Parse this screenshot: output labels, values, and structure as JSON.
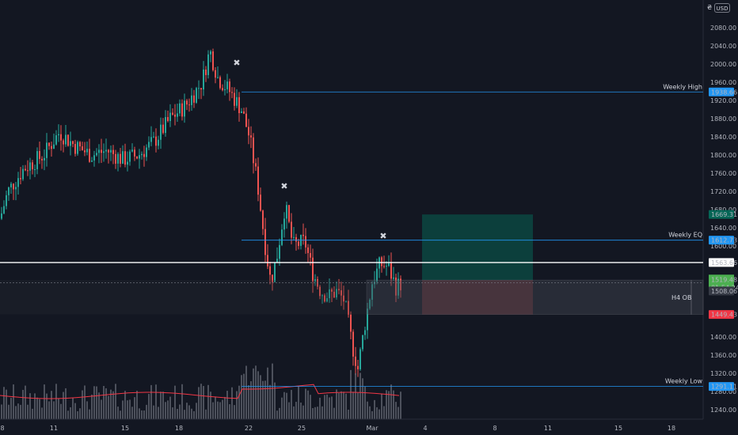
{
  "currency_symbol": "₴",
  "currency_button": "USD",
  "price_axis": {
    "ticks": [
      "2080.00",
      "2040.00",
      "2000.00",
      "1960.00",
      "1920.00",
      "1880.00",
      "1840.00",
      "1800.00",
      "1760.00",
      "1720.00",
      "1680.00",
      "1640.00",
      "1600.00",
      "1400.00",
      "1360.00",
      "1320.00",
      "1280.00",
      "1240.00"
    ],
    "tick_values": [
      2080,
      2040,
      2000,
      1960,
      1920,
      1880,
      1840,
      1800,
      1760,
      1720,
      1680,
      1640,
      1600,
      1400,
      1360,
      1320,
      1280,
      1240
    ]
  },
  "time_axis": {
    "labels": [
      "8",
      "11",
      "15",
      "18",
      "22",
      "25",
      "Mar",
      "4",
      "8",
      "11",
      "15",
      "18"
    ]
  },
  "levels": {
    "weekly_high": {
      "label": "Weekly High",
      "price": 1938.66,
      "price_label": "1938.66",
      "color": "#2196f3"
    },
    "weekly_eq": {
      "label": "Weekly EQ",
      "price": 1612.73,
      "price_label": "1612.73",
      "color": "#2196f3"
    },
    "weekly_low": {
      "label": "Weekly Low",
      "price": 1291.11,
      "price_label": "1291.11",
      "color": "#2196f3"
    },
    "white_line": {
      "price": 1563.66,
      "price_label": "1563.66",
      "color": "#ffffff"
    },
    "target": {
      "price_label": "1669.31",
      "color": "#056656"
    },
    "stop": {
      "price_label": "1449.43",
      "color": "#f23645"
    }
  },
  "last_price": {
    "price": 1519.48,
    "price_label": "1519.48",
    "countdown": "01:54:24",
    "color": "#4caf50"
  },
  "ob_price": {
    "price_label": "1508.06"
  },
  "order_block": {
    "label": "H4 OB",
    "top": 1525,
    "bottom": 1449.43
  },
  "trade_box": {
    "entry": 1525,
    "target": 1669.31,
    "stop": 1449.43
  },
  "colors": {
    "up": "#26a69a",
    "down": "#ef5350",
    "volume": "#5d606b",
    "ma": "#f23645"
  },
  "markers": {
    "symbol": "✖",
    "count": 4
  }
}
